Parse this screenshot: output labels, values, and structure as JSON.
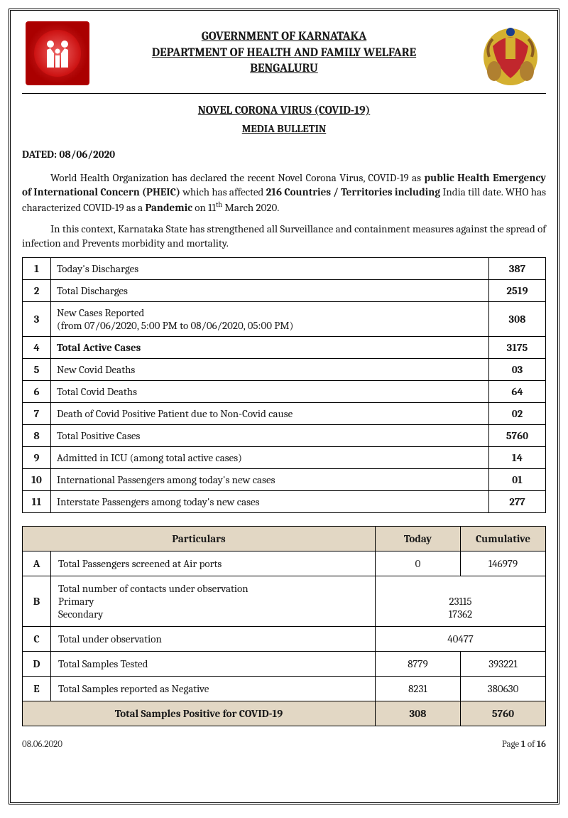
{
  "header": {
    "line1": "GOVERNMENT OF KARNATAKA",
    "line2": "DEPARTMENT OF HEALTH AND FAMILY WELFARE",
    "line3": "BENGALURU"
  },
  "subtitle": "NOVEL CORONA VIRUS (COVID-19)",
  "subtitle2": "MEDIA BULLETIN",
  "dated_label": "DATED: 08/06/2020",
  "para1_a": "World Health Organization has declared the recent Novel Corona Virus, COVID-19 as ",
  "para1_b": "public Health Emergency of International Concern (PHEIC)",
  "para1_c": " which has affected ",
  "para1_d": "216 Countries / Territories including",
  "para1_e": " India till date. WHO has characterized COVID-19 as a ",
  "para1_f": "Pandemic",
  "para1_g": " on 11",
  "para1_h": "th",
  "para1_i": " March 2020.",
  "para2": "In this context, Karnataka State has strengthened all Surveillance and containment measures against the spread of infection and Prevents morbidity and mortality.",
  "stats": [
    {
      "n": "1",
      "label": "Today's Discharges",
      "val": "387",
      "bold": false
    },
    {
      "n": "2",
      "label": "Total Discharges",
      "val": "2519",
      "bold": false
    },
    {
      "n": "3",
      "label": "New Cases Reported\n(from 07/06/2020, 5:00 PM to 08/06/2020, 05:00 PM)",
      "val": "308",
      "bold": false
    },
    {
      "n": "4",
      "label": "Total Active Cases",
      "val": "3175",
      "bold": true
    },
    {
      "n": "5",
      "label": "New Covid Deaths",
      "val": "03",
      "bold": false
    },
    {
      "n": "6",
      "label": "Total Covid Deaths",
      "val": "64",
      "bold": false
    },
    {
      "n": "7",
      "label": "Death of Covid Positive Patient due to Non-Covid cause",
      "val": "02",
      "bold": false
    },
    {
      "n": "8",
      "label": "Total Positive Cases",
      "val": "5760",
      "bold": false
    },
    {
      "n": "9",
      "label": "Admitted in ICU (among total active cases)",
      "val": "14",
      "bold": false
    },
    {
      "n": "10",
      "label": "International Passengers among today's new cases",
      "val": "01",
      "bold": false
    },
    {
      "n": "11",
      "label": "Interstate Passengers among today's new cases",
      "val": "277",
      "bold": false
    }
  ],
  "particulars": {
    "head_label": "Particulars",
    "head_today": "Today",
    "head_cum": "Cumulative",
    "rowA": {
      "idx": "A",
      "label": "Total Passengers screened at Air ports",
      "today": "0",
      "cum": "146979"
    },
    "rowB": {
      "idx": "B",
      "label_line1": "Total number of contacts under observation",
      "label_line2": "Primary",
      "label_line3": "Secondary",
      "val1": "23115",
      "val2": "17362"
    },
    "rowC": {
      "idx": "C",
      "label": "Total under observation",
      "merged": "40477"
    },
    "rowD": {
      "idx": "D",
      "label": "Total Samples Tested",
      "today": "8779",
      "cum": "393221"
    },
    "rowE": {
      "idx": "E",
      "label": "Total Samples reported as Negative",
      "today": "8231",
      "cum": "380630"
    },
    "rowTotal": {
      "label": "Total Samples Positive for COVID-19",
      "today": "308",
      "cum": "5760"
    }
  },
  "footer": {
    "date": "08.06.2020",
    "page_prefix": "Page ",
    "page_cur": "1",
    "page_mid": " of ",
    "page_total": "16"
  }
}
